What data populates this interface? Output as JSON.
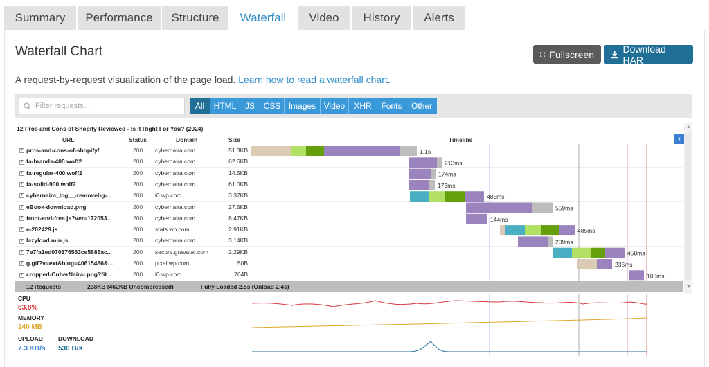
{
  "tabs": [
    {
      "label": "Summary"
    },
    {
      "label": "Performance"
    },
    {
      "label": "Structure"
    },
    {
      "label": "Waterfall"
    },
    {
      "label": "Video"
    },
    {
      "label": "History"
    },
    {
      "label": "Alerts"
    }
  ],
  "page": {
    "title": "Waterfall Chart",
    "description": "A request-by-request visualization of the page load. ",
    "learn_link": "Learn how to read a waterfall chart",
    "period": ".",
    "fullscreen_label": "Fullscreen",
    "download_label": "Download HAR"
  },
  "filters": {
    "search_placeholder": "Filter requests...",
    "buttons": [
      "All",
      "HTML",
      "JS",
      "CSS",
      "Images",
      "Video",
      "XHR",
      "Fonts",
      "Other"
    ],
    "active": "All"
  },
  "waterfall": {
    "page_title": "12 Pros and Cons of Shopify Reviewed - Is it Right For You? (2024)",
    "headers": {
      "url": "URL",
      "status": "Status",
      "domain": "Domain",
      "size": "Size",
      "timeline": "Timeline"
    },
    "rows": [
      {
        "url": "pros-and-cons-of-shopify/",
        "status": "200",
        "domain": "cybernaira.com",
        "size": "51.3KB",
        "time": "1.1s"
      },
      {
        "url": "fa-brands-400.woff2",
        "status": "200",
        "domain": "cybernaira.com",
        "size": "62.6KB",
        "time": "213ms"
      },
      {
        "url": "fa-regular-400.woff2",
        "status": "200",
        "domain": "cybernaira.com",
        "size": "14.5KB",
        "time": "174ms"
      },
      {
        "url": "fa-solid-900.woff2",
        "status": "200",
        "domain": "cybernaira.com",
        "size": "61.0KB",
        "time": "173ms"
      },
      {
        "url": "cybernaira_log__-removebg-...",
        "status": "200",
        "domain": "i0.wp.com",
        "size": "3.37KB",
        "time": "485ms"
      },
      {
        "url": "eBook-download.png",
        "status": "200",
        "domain": "cybernaira.com",
        "size": "27.5KB",
        "time": "559ms"
      },
      {
        "url": "front-end-free.js?ver=172053...",
        "status": "200",
        "domain": "cybernaira.com",
        "size": "8.47KB",
        "time": "144ms"
      },
      {
        "url": "e-202429.js",
        "status": "200",
        "domain": "stats.wp.com",
        "size": "2.91KB",
        "time": "485ms"
      },
      {
        "url": "lazyload.min.js",
        "status": "200",
        "domain": "cybernaira.com",
        "size": "3.14KB",
        "time": "209ms"
      },
      {
        "url": "7e7fa1ed070176563ce5886ac...",
        "status": "200",
        "domain": "secure.gravatar.com",
        "size": "2.29KB",
        "time": "458ms"
      },
      {
        "url": "g.gif?v=ext&blog=40615486&...",
        "status": "200",
        "domain": "pixel.wp.com",
        "size": "50B",
        "time": "235ms"
      },
      {
        "url": "cropped-CuberNaira-.png?fit...",
        "status": "200",
        "domain": "i0.wp.com",
        "size": "764B",
        "time": "108ms"
      }
    ],
    "summary": {
      "requests": "12 Requests",
      "size": "238KB (462KB Uncompressed)",
      "loaded": "Fully Loaded 2.5s  (Onload 2.4s)"
    }
  },
  "perf": {
    "cpu_label": "CPU",
    "cpu_value": "63.8%",
    "memory_label": "MEMORY",
    "memory_value": "240 MB",
    "upload_label": "UPLOAD",
    "upload_value": "7.3 KB/s",
    "download_label": "DOWNLOAD",
    "download_value": "530 B/s"
  },
  "colors": {
    "accent": "#2f8dc8",
    "blocked": "#dccbb4",
    "dns": "#4bafc4",
    "connect": "#b1e065",
    "ssl": "#63a00c",
    "wait": "#9b84bd",
    "receive": "#bdbdbd",
    "cpu": "#d9363e",
    "memory": "#e0a728",
    "network": "#1f6f96"
  }
}
